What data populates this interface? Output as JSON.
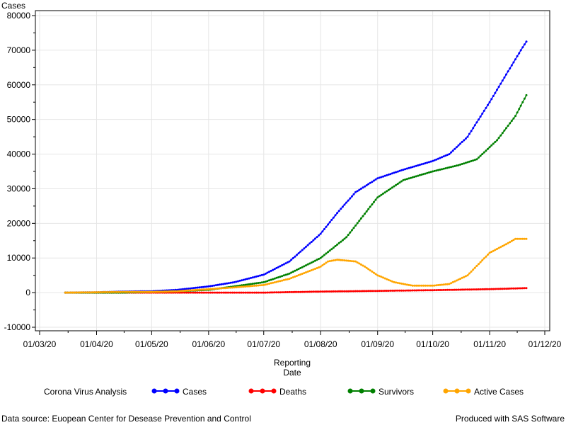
{
  "chart_data": {
    "type": "line",
    "ylabel": "Cases",
    "xlabel_line1": "Reporting",
    "xlabel_line2": "Date",
    "ylim": [
      -10000,
      80000
    ],
    "yticks": [
      -10000,
      0,
      10000,
      20000,
      30000,
      40000,
      50000,
      60000,
      70000,
      80000
    ],
    "xlim": [
      "2020-03-01",
      "2020-12-01"
    ],
    "xticks": [
      {
        "date": "2020-03-01",
        "label": "01/03/20"
      },
      {
        "date": "2020-04-01",
        "label": "01/04/20"
      },
      {
        "date": "2020-05-01",
        "label": "01/05/20"
      },
      {
        "date": "2020-06-01",
        "label": "01/06/20"
      },
      {
        "date": "2020-07-01",
        "label": "01/07/20"
      },
      {
        "date": "2020-08-01",
        "label": "01/08/20"
      },
      {
        "date": "2020-09-01",
        "label": "01/09/20"
      },
      {
        "date": "2020-10-01",
        "label": "01/10/20"
      },
      {
        "date": "2020-11-01",
        "label": "01/11/20"
      },
      {
        "date": "2020-12-01",
        "label": "01/12/20"
      }
    ],
    "grid": true,
    "legend_title": "Corona Virus Analysis",
    "legend_position": "bottom",
    "series": [
      {
        "name": "Cases",
        "color": "#0000ff",
        "points": [
          [
            "2020-03-15",
            0
          ],
          [
            "2020-04-01",
            100
          ],
          [
            "2020-04-15",
            300
          ],
          [
            "2020-05-01",
            400
          ],
          [
            "2020-05-15",
            800
          ],
          [
            "2020-06-01",
            1800
          ],
          [
            "2020-06-15",
            3000
          ],
          [
            "2020-07-01",
            5200
          ],
          [
            "2020-07-15",
            9000
          ],
          [
            "2020-08-01",
            17000
          ],
          [
            "2020-08-10",
            23000
          ],
          [
            "2020-08-20",
            29000
          ],
          [
            "2020-09-01",
            33000
          ],
          [
            "2020-09-15",
            35500
          ],
          [
            "2020-10-01",
            38000
          ],
          [
            "2020-10-10",
            40000
          ],
          [
            "2020-10-20",
            45000
          ],
          [
            "2020-11-01",
            55000
          ],
          [
            "2020-11-10",
            63000
          ],
          [
            "2020-11-18",
            70000
          ],
          [
            "2020-11-21",
            72500
          ]
        ]
      },
      {
        "name": "Deaths",
        "color": "#ff0000",
        "points": [
          [
            "2020-03-15",
            0
          ],
          [
            "2020-05-01",
            0
          ],
          [
            "2020-06-01",
            0
          ],
          [
            "2020-07-01",
            0
          ],
          [
            "2020-08-01",
            300
          ],
          [
            "2020-09-01",
            500
          ],
          [
            "2020-10-01",
            700
          ],
          [
            "2020-11-01",
            1000
          ],
          [
            "2020-11-21",
            1300
          ]
        ]
      },
      {
        "name": "Survivors",
        "color": "#008000",
        "points": [
          [
            "2020-03-15",
            0
          ],
          [
            "2020-04-15",
            0
          ],
          [
            "2020-05-01",
            200
          ],
          [
            "2020-05-15",
            400
          ],
          [
            "2020-06-01",
            800
          ],
          [
            "2020-06-15",
            1800
          ],
          [
            "2020-07-01",
            3000
          ],
          [
            "2020-07-15",
            5500
          ],
          [
            "2020-08-01",
            10000
          ],
          [
            "2020-08-15",
            16000
          ],
          [
            "2020-09-01",
            27500
          ],
          [
            "2020-09-15",
            32500
          ],
          [
            "2020-10-01",
            35000
          ],
          [
            "2020-10-15",
            36800
          ],
          [
            "2020-10-25",
            38500
          ],
          [
            "2020-11-05",
            44000
          ],
          [
            "2020-11-15",
            51000
          ],
          [
            "2020-11-21",
            57000
          ]
        ]
      },
      {
        "name": "Active Cases",
        "color": "#ffa500",
        "points": [
          [
            "2020-03-15",
            0
          ],
          [
            "2020-04-15",
            200
          ],
          [
            "2020-05-01",
            200
          ],
          [
            "2020-05-15",
            400
          ],
          [
            "2020-06-01",
            1000
          ],
          [
            "2020-06-15",
            1500
          ],
          [
            "2020-07-01",
            2200
          ],
          [
            "2020-07-15",
            4000
          ],
          [
            "2020-08-01",
            7500
          ],
          [
            "2020-08-05",
            9000
          ],
          [
            "2020-08-10",
            9500
          ],
          [
            "2020-08-20",
            9000
          ],
          [
            "2020-08-25",
            7500
          ],
          [
            "2020-09-01",
            5000
          ],
          [
            "2020-09-10",
            3000
          ],
          [
            "2020-09-20",
            2000
          ],
          [
            "2020-10-01",
            2000
          ],
          [
            "2020-10-10",
            2500
          ],
          [
            "2020-10-20",
            5000
          ],
          [
            "2020-11-01",
            11500
          ],
          [
            "2020-11-10",
            14000
          ],
          [
            "2020-11-15",
            15500
          ],
          [
            "2020-11-21",
            15500
          ]
        ]
      }
    ]
  },
  "footer": {
    "left": "Data source: Euopean Center for Desease Prevention and Control",
    "right": "Produced with SAS Software"
  }
}
